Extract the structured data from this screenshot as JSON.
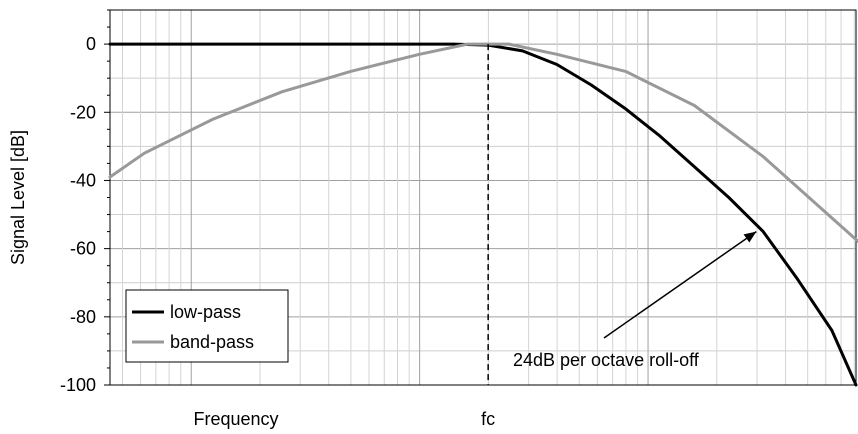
{
  "chart_data": {
    "type": "line",
    "xlabel": "Frequency",
    "ylabel": "Signal Level [dB]",
    "x_scale": "log",
    "x_range_octaves_relative_to_fc": [
      -5.5,
      5.35
    ],
    "ylim": [
      -100,
      10
    ],
    "yticks": [
      0,
      -20,
      -40,
      -60,
      -80,
      -100
    ],
    "x_marker": {
      "label": "fc",
      "octaves_relative_to_fc": 0
    },
    "grid": true,
    "legend": {
      "placement": "bottom-left",
      "entries": [
        "low-pass",
        "band-pass"
      ]
    },
    "series": [
      {
        "name": "low-pass",
        "color": "#000000",
        "points_octaves_dB": [
          [
            -5.5,
            0
          ],
          [
            -0.5,
            0
          ],
          [
            0,
            -0.3
          ],
          [
            0.5,
            -2
          ],
          [
            1,
            -6
          ],
          [
            1.5,
            -12
          ],
          [
            2,
            -19
          ],
          [
            2.5,
            -27
          ],
          [
            3,
            -36
          ],
          [
            3.5,
            -45
          ],
          [
            4,
            -55
          ],
          [
            4.5,
            -69
          ],
          [
            5,
            -84
          ],
          [
            5.35,
            -100
          ]
        ]
      },
      {
        "name": "band-pass",
        "color": "#999999",
        "points_octaves_dB": [
          [
            -5.5,
            -39
          ],
          [
            -5,
            -32
          ],
          [
            -4,
            -22
          ],
          [
            -3,
            -14
          ],
          [
            -2,
            -8
          ],
          [
            -1,
            -3
          ],
          [
            -0.3,
            0
          ],
          [
            0.3,
            0
          ],
          [
            1,
            -3
          ],
          [
            2,
            -8
          ],
          [
            3,
            -18
          ],
          [
            4,
            -33
          ],
          [
            5,
            -51
          ],
          [
            5.5,
            -60
          ]
        ]
      }
    ],
    "annotations": [
      {
        "text": "24dB per octave roll-off",
        "points_to": [
          3.9,
          -55
        ]
      }
    ]
  }
}
